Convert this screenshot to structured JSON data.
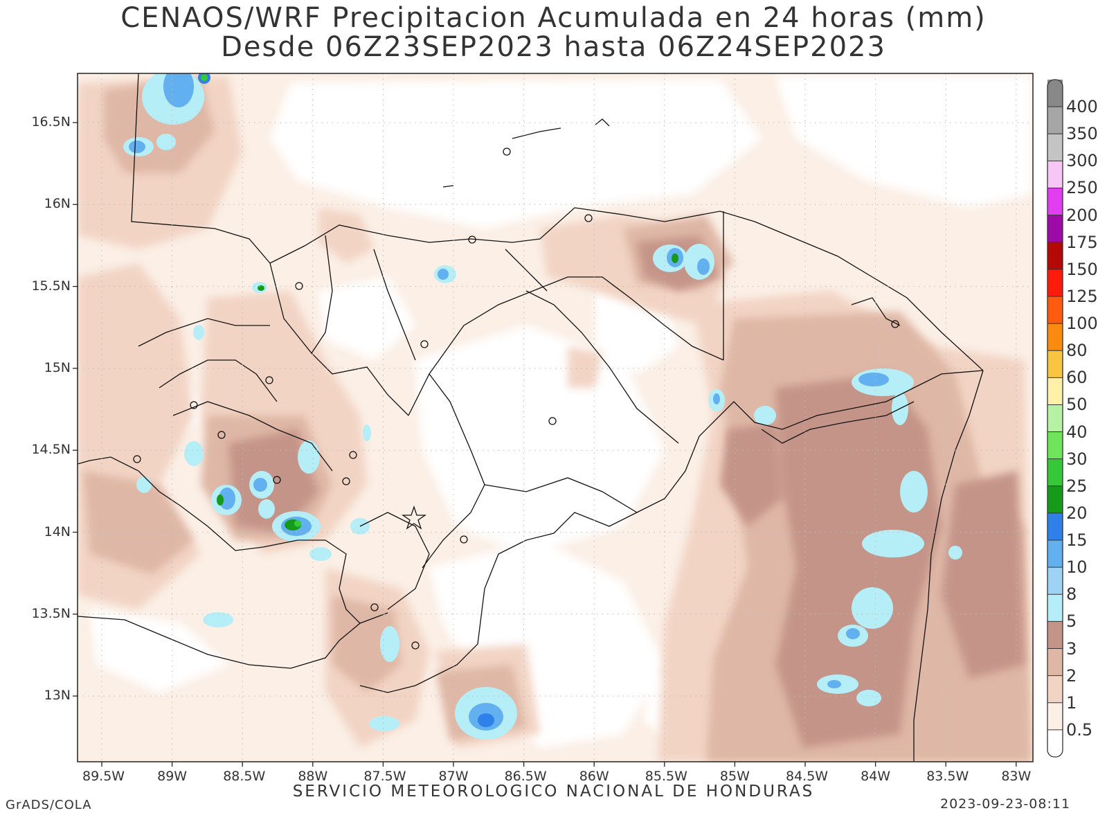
{
  "title": {
    "line1": "CENAOS/WRF Precipitacion Acumulada en 24 horas (mm)",
    "line2": "Desde 06Z23SEP2023 hasta 06Z24SEP2023"
  },
  "footer": {
    "left": "GrADS/COLA",
    "center": "SERVICIO METEOROLOGICO NACIONAL DE HONDURAS",
    "right": "2023-09-23-08:11"
  },
  "lon_ticks": [
    "89.5W",
    "89W",
    "88.5W",
    "88W",
    "87.5W",
    "87W",
    "86.5W",
    "86W",
    "85.5W",
    "85W",
    "84.5W",
    "84W",
    "83.5W",
    "83W"
  ],
  "lat_ticks": [
    "16.5N",
    "16N",
    "15.5N",
    "15N",
    "14.5N",
    "14N",
    "13.5N",
    "13N"
  ],
  "legend": {
    "levels": [
      "0.5",
      "1",
      "2",
      "3",
      "5",
      "8",
      "10",
      "15",
      "20",
      "25",
      "30",
      "40",
      "50",
      "60",
      "80",
      "100",
      "125",
      "150",
      "175",
      "200",
      "250",
      "300",
      "350",
      "400"
    ],
    "colors": [
      "#ffffff",
      "#fbefe6",
      "#f2d4c4",
      "#dfb7a6",
      "#c49488",
      "#b5eef6",
      "#9ed3f5",
      "#62b0ef",
      "#2f80e8",
      "#159a1a",
      "#37c83a",
      "#6fe55c",
      "#b7f2a4",
      "#fff2a8",
      "#f9c440",
      "#fb8a11",
      "#ff5b0f",
      "#fd1b0b",
      "#b50908",
      "#9e0aa8",
      "#e03ef0",
      "#f6c6f4",
      "#c4c4c4",
      "#a6a6a6",
      "#888888"
    ]
  }
}
